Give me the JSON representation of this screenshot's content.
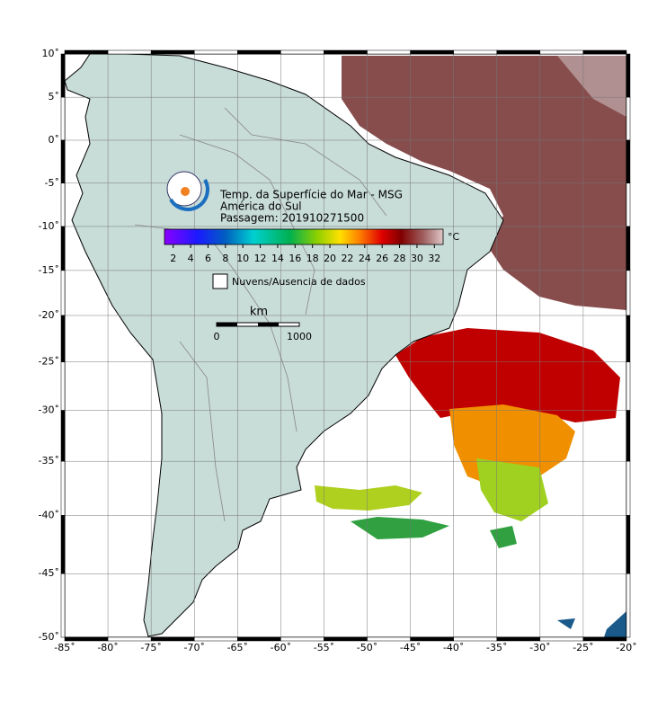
{
  "map": {
    "title_lines": [
      "Temp. da Superfície do Mar - MSG",
      "América do Sul",
      "Passagem: 201910271500"
    ],
    "lonlim": [
      -85,
      -20
    ],
    "latlim": [
      -50,
      10
    ],
    "lon_ticks": [
      {
        "value": -85,
        "label": "-85˚"
      },
      {
        "value": -80,
        "label": "-80˚"
      },
      {
        "value": -75,
        "label": "-75˚"
      },
      {
        "value": -70,
        "label": "-70˚"
      },
      {
        "value": -65,
        "label": "-65˚"
      },
      {
        "value": -60,
        "label": "-60˚"
      },
      {
        "value": -55,
        "label": "-55˚"
      },
      {
        "value": -50,
        "label": "-50˚"
      },
      {
        "value": -45,
        "label": "-45˚"
      },
      {
        "value": -40,
        "label": "-40˚"
      },
      {
        "value": -35,
        "label": "-35˚"
      },
      {
        "value": -30,
        "label": "-30˚"
      },
      {
        "value": -25,
        "label": "-25˚"
      },
      {
        "value": -20,
        "label": "-20˚"
      }
    ],
    "lat_ticks": [
      {
        "value": 10,
        "label": "10˚"
      },
      {
        "value": 5,
        "label": "5˚"
      },
      {
        "value": 0,
        "label": "0˚"
      },
      {
        "value": -5,
        "label": "-5˚"
      },
      {
        "value": -10,
        "label": "-10˚"
      },
      {
        "value": -15,
        "label": "-15˚"
      },
      {
        "value": -20,
        "label": "-20˚"
      },
      {
        "value": -25,
        "label": "-25˚"
      },
      {
        "value": -30,
        "label": "-30˚"
      },
      {
        "value": -35,
        "label": "-35˚"
      },
      {
        "value": -40,
        "label": "-40˚"
      },
      {
        "value": -45,
        "label": "-45˚"
      },
      {
        "value": -50,
        "label": "-50˚"
      }
    ],
    "colorbar": {
      "lim": [
        1,
        33
      ],
      "ticks": [
        2,
        4,
        6,
        8,
        10,
        12,
        14,
        16,
        18,
        20,
        22,
        24,
        26,
        28,
        30,
        32
      ],
      "unit": "°C"
    },
    "legend": "Nuvens/Ausencia de dados",
    "scale_bar": {
      "unit": "km",
      "labels": [
        "0",
        "1000"
      ]
    }
  }
}
